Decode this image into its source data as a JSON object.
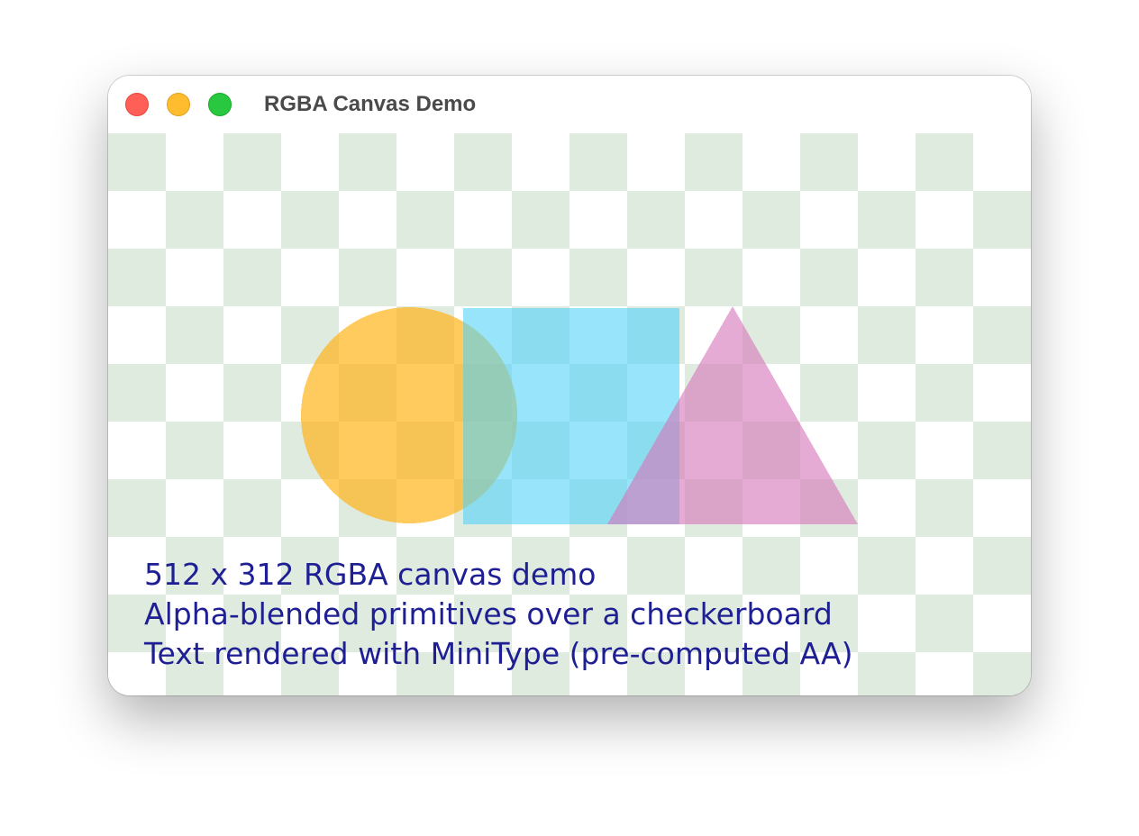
{
  "window": {
    "title": "RGBA Canvas Demo"
  },
  "colors": {
    "checker_light": "#ffffff",
    "checker_dark": "#e0ebe0",
    "circle": "#ffb31a",
    "rectangle": "#54d2f8",
    "triangle": "#d573b8",
    "text": "#1f1f94",
    "close": "#ff5f57",
    "minimize": "#febc2e",
    "zoom": "#28c840"
  },
  "canvas": {
    "shapes": {
      "circle": {
        "color_name": "orange",
        "opacity": 0.7
      },
      "rectangle": {
        "color_name": "light-blue",
        "opacity": 0.6
      },
      "triangle": {
        "color_name": "pink",
        "opacity": 0.6
      }
    },
    "caption_lines": [
      "512 x 312 RGBA canvas demo",
      "Alpha-blended primitives over a checkerboard",
      "Text rendered with MiniType (pre-computed AA)"
    ]
  }
}
